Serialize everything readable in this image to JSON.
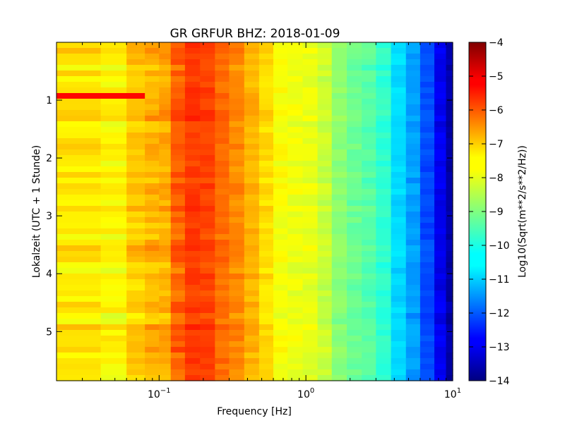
{
  "chart_data": {
    "type": "heatmap",
    "title": "GR GRFUR BHZ: 2018-01-09",
    "xlabel": "Frequency [Hz]",
    "ylabel": "Lokalzeit (UTC + 1 Stunde)",
    "colorbar_label": "Log10(Sqrt(m**2/s**2/Hz))",
    "x_scale": "log",
    "xlim": [
      0.02,
      10
    ],
    "ylim": [
      5.85,
      0
    ],
    "x_ticks": [
      {
        "value": 0.1,
        "base": "10",
        "exp": "−1"
      },
      {
        "value": 1,
        "base": "10",
        "exp": "0"
      },
      {
        "value": 10,
        "base": "10",
        "exp": "1"
      }
    ],
    "y_ticks": [
      {
        "value": 1,
        "label": "1"
      },
      {
        "value": 2,
        "label": "2"
      },
      {
        "value": 3,
        "label": "3"
      },
      {
        "value": 4,
        "label": "4"
      },
      {
        "value": 5,
        "label": "5"
      }
    ],
    "clim": [
      -14,
      -4
    ],
    "colorbar_ticks": [
      {
        "value": -4,
        "label": "−4"
      },
      {
        "value": -5,
        "label": "−5"
      },
      {
        "value": -6,
        "label": "−6"
      },
      {
        "value": -7,
        "label": "−7"
      },
      {
        "value": -8,
        "label": "−8"
      },
      {
        "value": -9,
        "label": "−9"
      },
      {
        "value": -10,
        "label": "−10"
      },
      {
        "value": -11,
        "label": "−11"
      },
      {
        "value": -12,
        "label": "−12"
      },
      {
        "value": -13,
        "label": "−13"
      },
      {
        "value": -14,
        "label": "−14"
      }
    ],
    "colormap": "jet",
    "grid": false,
    "frequency_bins": [
      0.02,
      0.04,
      0.06,
      0.08,
      0.1,
      0.12,
      0.15,
      0.19,
      0.24,
      0.3,
      0.38,
      0.48,
      0.6,
      0.75,
      0.95,
      1.2,
      1.5,
      1.9,
      2.4,
      3.0,
      3.8,
      4.8,
      6.0,
      7.5,
      9.0,
      10
    ],
    "mean_spectrum": [
      -7.5,
      -7.7,
      -7.2,
      -7.0,
      -6.9,
      -6.2,
      -5.8,
      -5.9,
      -6.3,
      -6.6,
      -7.0,
      -7.4,
      -7.8,
      -7.9,
      -8.0,
      -8.3,
      -8.9,
      -9.2,
      -9.4,
      -9.8,
      -10.6,
      -11.2,
      -12.0,
      -12.9,
      -13.6
    ],
    "time_rows": 60,
    "anomaly": {
      "start": 0.85,
      "end": 0.95,
      "freq_max": 0.08,
      "value": -5.3
    }
  }
}
